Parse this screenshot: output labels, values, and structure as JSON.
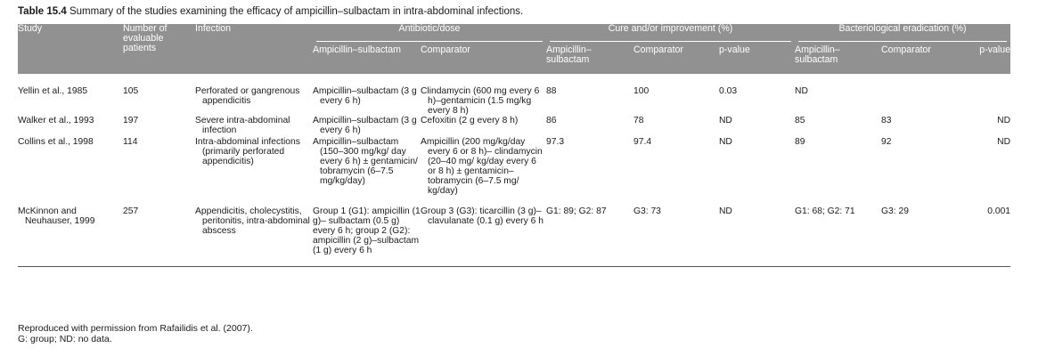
{
  "caption": {
    "label": "Table 15.4",
    "text": "Summary of the studies examining the efficacy of ampicillin–sulbactam in intra-abdominal infections."
  },
  "headers": {
    "study": "Study",
    "number": "Number of evaluable patients",
    "infection": "Infection",
    "antibiotic_group": "Antibiotic/dose",
    "cure_group": "Cure and/or improvement (%)",
    "erad_group": "Bacteriological eradication (%)",
    "amp_sul": "Ampicillin–sulbactam",
    "comparator": "Comparator",
    "pvalue": "p-value"
  },
  "rows": [
    {
      "study": "Yellin et al., 1985",
      "number": "105",
      "infection": "Perforated or gangrenous appendicitis",
      "amp_dose": "Ampicillin–sulbactam (3 g every 6 h)",
      "comp_dose": "Clindamycin (600 mg every 6 h)–gentamicin (1.5 mg/kg every 8 h)",
      "cure_amp": "88",
      "cure_comp": "100",
      "cure_p": "0.03",
      "erad_amp": "ND",
      "erad_comp": "",
      "erad_p": ""
    },
    {
      "study": "Walker et al., 1993",
      "number": "197",
      "infection": "Severe intra-abdominal infection",
      "amp_dose": "Ampicillin–sulbactam (3 g every 6 h)",
      "comp_dose": "Cefoxitin (2 g every 8 h)",
      "cure_amp": "86",
      "cure_comp": "78",
      "cure_p": "ND",
      "erad_amp": "85",
      "erad_comp": "83",
      "erad_p": "ND"
    },
    {
      "study": "Collins et al., 1998",
      "number": "114",
      "infection": "Intra-abdominal infections (primarily perforated appendicitis)",
      "amp_dose": "Ampicillin–sulbactam (150–300 mg/kg/ day every 6 h) ± gentamicin/ tobramycin (6–7.5 mg/kg/day)",
      "comp_dose": "Ampicillin (200 mg/kg/day every 6 or 8 h)– clindamycin (20–40 mg/ kg/day every 6 or 8 h) ± gentamicin– tobramycin (6–7.5 mg/ kg/day)",
      "cure_amp": "97.3",
      "cure_comp": "97.4",
      "cure_p": "ND",
      "erad_amp": "89",
      "erad_comp": "92",
      "erad_p": "ND"
    },
    {
      "study": "McKinnon and Neuhauser, 1999",
      "number": "257",
      "infection": "Appendicitis, cholecystitis, peritonitis, intra-abdominal abscess",
      "amp_dose": "Group 1 (G1): ampicillin (1 g)– sulbactam (0.5 g) every 6 h; group 2 (G2): ampicillin (2 g)–sulbactam (1 g) every 6 h",
      "comp_dose": "Group 3 (G3): ticarcillin (3 g)–clavulanate (0.1 g) every 6 h",
      "cure_amp": "G1: 89; G2: 87",
      "cure_comp": "G3: 73",
      "cure_p": "ND",
      "erad_amp": "G1: 68; G2: 71",
      "erad_comp": "G3: 29",
      "erad_p": "0.001"
    }
  ],
  "footer": {
    "line1": "Reproduced with permission from Rafailidis et al. (2007).",
    "line2": "G: group; ND: no data."
  }
}
